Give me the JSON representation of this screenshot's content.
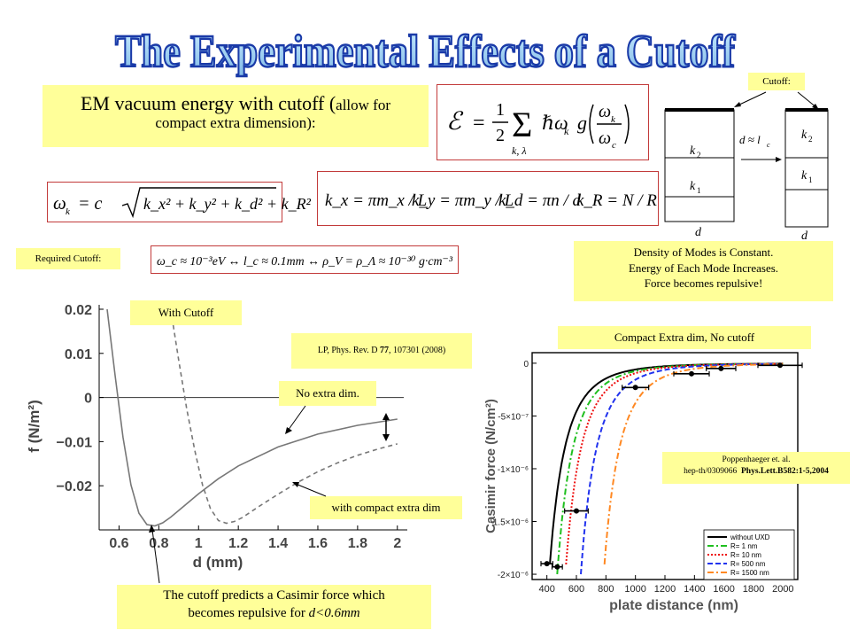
{
  "slide": {
    "title": "The Experimental Effects of a Cutoff"
  },
  "boxes": {
    "em_vacuum_main": "EM vacuum energy with cutoff (",
    "em_vacuum_small": "allow for compact extra dimension):",
    "required_cutoff": "Required Cutoff:",
    "cutoff_label": "Cutoff:",
    "density_line1": "Density of Modes is Constant.",
    "density_line2": "Energy of Each Mode Increases.",
    "density_line3": "Force becomes repulsive!",
    "with_cutoff": "With Cutoff",
    "lp_ref_prefix": "LP, Phys. Rev. D ",
    "lp_ref_vol": "77",
    "lp_ref_rest": ", 107301 (2008)",
    "no_extra_dim": "No extra dim.",
    "with_compact": "with compact extra dim",
    "casimir_line1": "The cutoff predicts a Casimir force which",
    "casimir_line2_prefix": "becomes repulsive for ",
    "casimir_line2_math": "d<0.6mm",
    "compact_no_cutoff": "Compact Extra dim, No cutoff",
    "poppenhaeger_line1": "Poppenhaeger et. al.",
    "poppenhaeger_line2_a": "hep-th/0309066",
    "poppenhaeger_line2_b": "Phys.Lett.B582:1-5,2004"
  },
  "equations": {
    "energy": {
      "lhs": "ℰ",
      "eq": "=",
      "frac_num": "1",
      "frac_den": "2",
      "sum": "Σ",
      "sum_sub": "k, λ",
      "hbar_omega": "ℏω",
      "g": "g",
      "omega_k": "ω",
      "omega_c": "ω",
      "sub_k": "k",
      "sub_c": "c"
    },
    "dispersion": {
      "lhs": "ω",
      "lhs_sub": "k",
      "rhs": "= c",
      "radicand": "k_x² + k_y² + k_d² + k_R²"
    },
    "modes": {
      "kx": "k_x = πm_x / L",
      "ky": "k_y = πm_y / L",
      "kd": "k_d = πn / d",
      "kR": "k_R = N / R"
    },
    "required": "ω_c ≈ 10⁻³eV ↔ l_c ≈ 0.1mm ↔ ρ_V = ρ_Λ ≈ 10⁻³⁰ g·cm⁻³"
  },
  "plate_diagram": {
    "k2": "k",
    "k2_sub": "2",
    "k1": "k",
    "k1_sub": "1",
    "d": "d",
    "arrow_label": "d ≈ l",
    "arrow_label_sub": "c"
  },
  "chart_data": [
    {
      "type": "line",
      "title": "",
      "xlabel": "d (mm)",
      "ylabel": "f (N/m²)",
      "xlim": [
        0.5,
        2.05
      ],
      "ylim": [
        -0.03,
        0.021
      ],
      "x_ticks": [
        "0.6",
        "0.8",
        "1",
        "1.2",
        "1.4",
        "1.6",
        "1.8",
        "2"
      ],
      "y_ticks": [
        "0.02",
        "0.01",
        "0",
        "−0.01",
        "−0.02"
      ],
      "grid": false,
      "series": [
        {
          "style": "solid",
          "color": "#777777",
          "x": [
            0.54,
            0.58,
            0.62,
            0.66,
            0.7,
            0.74,
            0.78,
            0.82,
            0.86,
            0.9,
            1.0,
            1.1,
            1.2,
            1.4,
            1.6,
            1.8,
            2.0
          ],
          "y": [
            0.02,
            0.005,
            -0.009,
            -0.0198,
            -0.0262,
            -0.0288,
            -0.0291,
            -0.0284,
            -0.0271,
            -0.0256,
            -0.0218,
            -0.0184,
            -0.0155,
            -0.0112,
            -0.0083,
            -0.0063,
            -0.0049
          ]
        },
        {
          "style": "dashed",
          "color": "#777777",
          "x": [
            0.86,
            0.9,
            0.94,
            0.98,
            1.02,
            1.06,
            1.1,
            1.14,
            1.18,
            1.22,
            1.3,
            1.4,
            1.5,
            1.6,
            1.7,
            1.8,
            1.9,
            2.0
          ],
          "y": [
            0.02,
            0.0085,
            -0.0025,
            -0.0118,
            -0.0198,
            -0.0252,
            -0.0279,
            -0.0285,
            -0.0281,
            -0.0272,
            -0.0248,
            -0.0219,
            -0.0192,
            -0.0168,
            -0.0148,
            -0.0131,
            -0.0117,
            -0.0105
          ]
        }
      ]
    },
    {
      "type": "line",
      "title": "",
      "xlabel": "plate distance (nm)",
      "ylabel": "Casimir force (N/cm²)",
      "xlim": [
        300,
        2100
      ],
      "ylim": [
        -2.05e-06,
        1e-07
      ],
      "x_ticks": [
        "400",
        "600",
        "800",
        "1000",
        "1200",
        "1400",
        "1600",
        "1800",
        "2000"
      ],
      "y_ticks": [
        "0",
        "-5×10⁻⁷",
        "-1×10⁻⁶",
        "-1.5×10⁻⁶",
        "-2×10⁻⁶"
      ],
      "legend_position": "bottom-right",
      "series": [
        {
          "name": "without UXD",
          "color": "#000000",
          "style": "solid",
          "shift": 0
        },
        {
          "name": "R= 1 nm",
          "color": "#1fbf1f",
          "style": "dashdot",
          "shift": 55
        },
        {
          "name": "R= 10 nm",
          "color": "#ee1111",
          "style": "dotted",
          "shift": 110
        },
        {
          "name": "R= 500 nm",
          "color": "#2233ee",
          "style": "dashed",
          "shift": 215
        },
        {
          "name": "R= 1500 nm",
          "color": "#ff8822",
          "style": "dashdot",
          "shift": 370
        }
      ],
      "points": [
        {
          "x": 400,
          "y": -1.9e-06,
          "xerr": 40
        },
        {
          "x": 470,
          "y": -1.93e-06,
          "xerr": 35
        },
        {
          "x": 600,
          "y": -1.4e-06,
          "xerr": 80
        },
        {
          "x": 1000,
          "y": -2.3e-07,
          "xerr": 90
        },
        {
          "x": 1380,
          "y": -1e-07,
          "xerr": 120
        },
        {
          "x": 1580,
          "y": -5e-08,
          "xerr": 100
        },
        {
          "x": 1980,
          "y": -2e-08,
          "xerr": 150
        }
      ]
    }
  ]
}
